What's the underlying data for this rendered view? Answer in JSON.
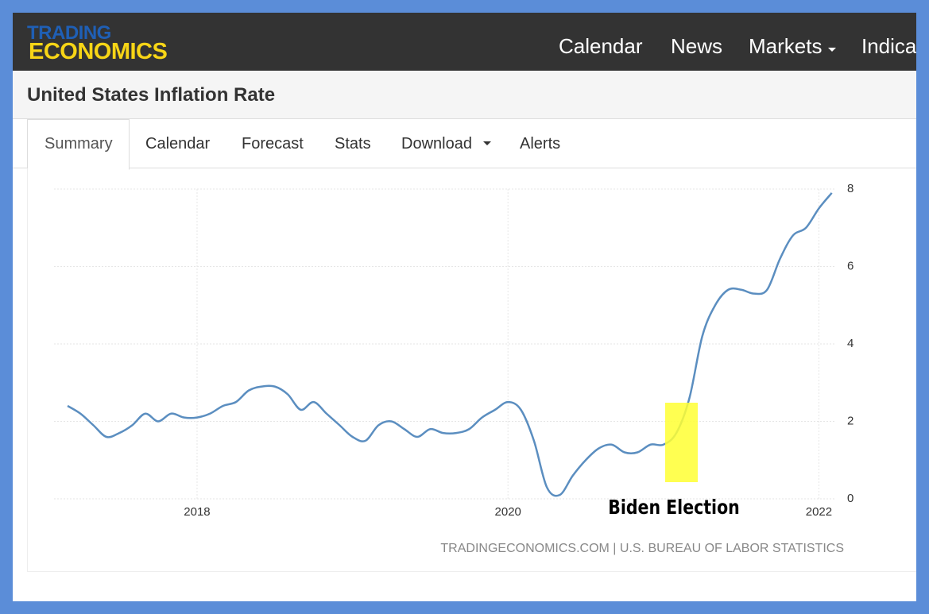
{
  "header": {
    "logo": [
      "TRADING",
      "ECONOMICS"
    ],
    "nav": [
      "Calendar",
      "News",
      "Markets",
      "Indica"
    ]
  },
  "page_title": "United States Inflation Rate",
  "tabs": [
    "Summary",
    "Calendar",
    "Forecast",
    "Stats",
    "Download",
    "Alerts"
  ],
  "chart_data": {
    "type": "line",
    "annotation": "Biden Election",
    "source": "TRADINGECONOMICS.COM | U.S. BUREAU OF LABOR STATISTICS",
    "xlim": [
      2017.08,
      2022.1
    ],
    "xticks": [
      2018,
      2020,
      2022
    ],
    "ylim": [
      0,
      8
    ],
    "yticks": [
      0,
      2,
      4,
      6,
      8
    ],
    "grid": true,
    "series": [
      {
        "color": "#5b8ec0",
        "x": [
          2017.167,
          2017.25,
          2017.333,
          2017.417,
          2017.5,
          2017.583,
          2017.667,
          2017.75,
          2017.833,
          2017.917,
          2018,
          2018.083,
          2018.167,
          2018.25,
          2018.333,
          2018.417,
          2018.5,
          2018.583,
          2018.667,
          2018.75,
          2018.833,
          2018.917,
          2019,
          2019.083,
          2019.167,
          2019.25,
          2019.333,
          2019.417,
          2019.5,
          2019.583,
          2019.667,
          2019.75,
          2019.833,
          2019.917,
          2020,
          2020.083,
          2020.167,
          2020.25,
          2020.333,
          2020.417,
          2020.5,
          2020.583,
          2020.667,
          2020.75,
          2020.833,
          2020.917,
          2021,
          2021.083,
          2021.167,
          2021.25,
          2021.333,
          2021.417,
          2021.5,
          2021.583,
          2021.667,
          2021.75,
          2021.833,
          2021.917,
          2022,
          2022.083
        ],
        "values": [
          2.4,
          2.2,
          1.9,
          1.6,
          1.7,
          1.9,
          2.2,
          2.0,
          2.2,
          2.1,
          2.1,
          2.2,
          2.4,
          2.5,
          2.8,
          2.9,
          2.9,
          2.7,
          2.3,
          2.5,
          2.2,
          1.9,
          1.6,
          1.5,
          1.9,
          2.0,
          1.8,
          1.6,
          1.8,
          1.7,
          1.7,
          1.8,
          2.1,
          2.3,
          2.5,
          2.3,
          1.5,
          0.3,
          0.1,
          0.6,
          1.0,
          1.3,
          1.4,
          1.2,
          1.2,
          1.4,
          1.4,
          1.7,
          2.6,
          4.2,
          5.0,
          5.4,
          5.4,
          5.3,
          5.4,
          6.2,
          6.8,
          7.0,
          7.5,
          7.9
        ]
      }
    ]
  }
}
